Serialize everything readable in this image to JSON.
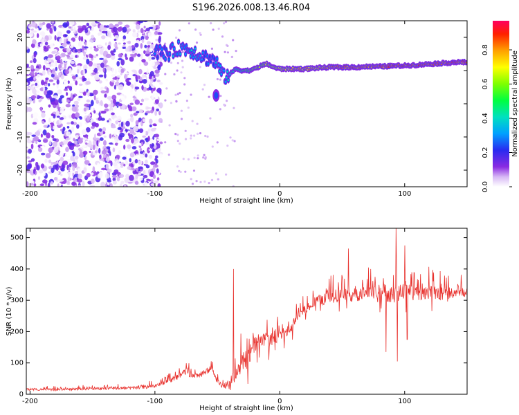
{
  "title": "S196.2026.008.13.46.R04",
  "chart_data": [
    {
      "type": "heatmap",
      "xlabel": "Height of straight line (km)",
      "ylabel": "Frequency (Hz)",
      "xlim": [
        -203,
        150
      ],
      "ylim": [
        -25,
        25
      ],
      "xticks": [
        -200,
        -100,
        0,
        100
      ],
      "yticks": [
        -20,
        -10,
        0,
        10,
        20
      ],
      "grid": false,
      "colorbar": {
        "label": "Normalized spectral amplitude",
        "range": [
          0.0,
          0.97
        ],
        "ticks": [
          0.0,
          0.2,
          0.4,
          0.6,
          0.8
        ],
        "tick_labels": [
          "0.0",
          "0.2",
          "0.4",
          "0.6",
          "0.8"
        ]
      },
      "ridge": {
        "x": [
          -100,
          -95,
          -90,
          -85,
          -80,
          -75,
          -70,
          -65,
          -60,
          -55,
          -50,
          -45,
          -40,
          -35,
          -30,
          -25,
          -20,
          -15,
          -10,
          -5,
          0,
          5,
          10,
          20,
          30,
          40,
          50,
          60,
          70,
          80,
          90,
          100,
          110,
          120,
          130,
          140,
          150
        ],
        "y": [
          16,
          15.5,
          15,
          16,
          17,
          16.5,
          16,
          15,
          14,
          13.5,
          12,
          8,
          9,
          10.5,
          10,
          10,
          10.5,
          11.5,
          12,
          11,
          10.5,
          10.5,
          10.5,
          10.5,
          10.8,
          11,
          11,
          11,
          11.2,
          11.2,
          11.4,
          11.5,
          11.7,
          12,
          12.2,
          12.5,
          12.5
        ],
        "amplitude": [
          0.3,
          0.3,
          0.35,
          0.4,
          0.45,
          0.4,
          0.45,
          0.4,
          0.35,
          0.35,
          0.4,
          0.45,
          0.5,
          0.55,
          0.6,
          0.65,
          0.7,
          0.7,
          0.75,
          0.75,
          0.8,
          0.8,
          0.85,
          0.85,
          0.85,
          0.9,
          0.9,
          0.92,
          0.92,
          0.93,
          0.93,
          0.94,
          0.94,
          0.95,
          0.95,
          0.95,
          0.95
        ]
      },
      "side_blob": {
        "x": -51,
        "y": 2.5,
        "amplitude": 0.25
      },
      "noise_region": {
        "x_from": -203,
        "x_to": -95,
        "amplitude_max": 0.2
      }
    },
    {
      "type": "line",
      "xlabel": "Height of straight line (km)",
      "ylabel": "SNR (10 * v/v)",
      "xlim": [
        -203,
        150
      ],
      "ylim": [
        0,
        530
      ],
      "xticks": [
        -200,
        -100,
        0,
        100
      ],
      "yticks": [
        0,
        100,
        200,
        300,
        400,
        500
      ],
      "grid": false,
      "series": [
        {
          "color": "#e8322e",
          "x": [
            -203,
            -180,
            -150,
            -120,
            -100,
            -90,
            -80,
            -75,
            -70,
            -65,
            -60,
            -55,
            -50,
            -45,
            -40,
            -35,
            -30,
            -25,
            -20,
            -15,
            -10,
            -5,
            0,
            5,
            10,
            15,
            20,
            25,
            30,
            40,
            50,
            60,
            70,
            80,
            90,
            100,
            110,
            120,
            130,
            140,
            150
          ],
          "y": [
            15,
            15,
            18,
            20,
            25,
            40,
            60,
            75,
            55,
            60,
            70,
            80,
            40,
            25,
            40,
            70,
            100,
            120,
            160,
            170,
            170,
            180,
            200,
            190,
            220,
            250,
            270,
            290,
            300,
            310,
            320,
            315,
            325,
            330,
            320,
            330,
            320,
            330,
            320,
            330,
            325
          ],
          "spread": [
            12,
            12,
            14,
            15,
            20,
            25,
            30,
            40,
            35,
            30,
            30,
            35,
            25,
            25,
            45,
            80,
            110,
            120,
            90,
            90,
            70,
            70,
            75,
            60,
            55,
            50,
            55,
            60,
            60,
            70,
            70,
            75,
            80,
            90,
            100,
            80,
            80,
            80,
            80,
            80,
            70
          ],
          "peaks": [
            {
              "x": -37,
              "y": 400
            },
            {
              "x": 93,
              "y": 530
            },
            {
              "x": 85,
              "y": 515
            },
            {
              "x": 100,
              "y": 475
            },
            {
              "x": 55,
              "y": 465
            },
            {
              "x": 94,
              "y": 105
            },
            {
              "x": 85,
              "y": 135
            },
            {
              "x": 102,
              "y": 175
            }
          ]
        }
      ]
    }
  ]
}
